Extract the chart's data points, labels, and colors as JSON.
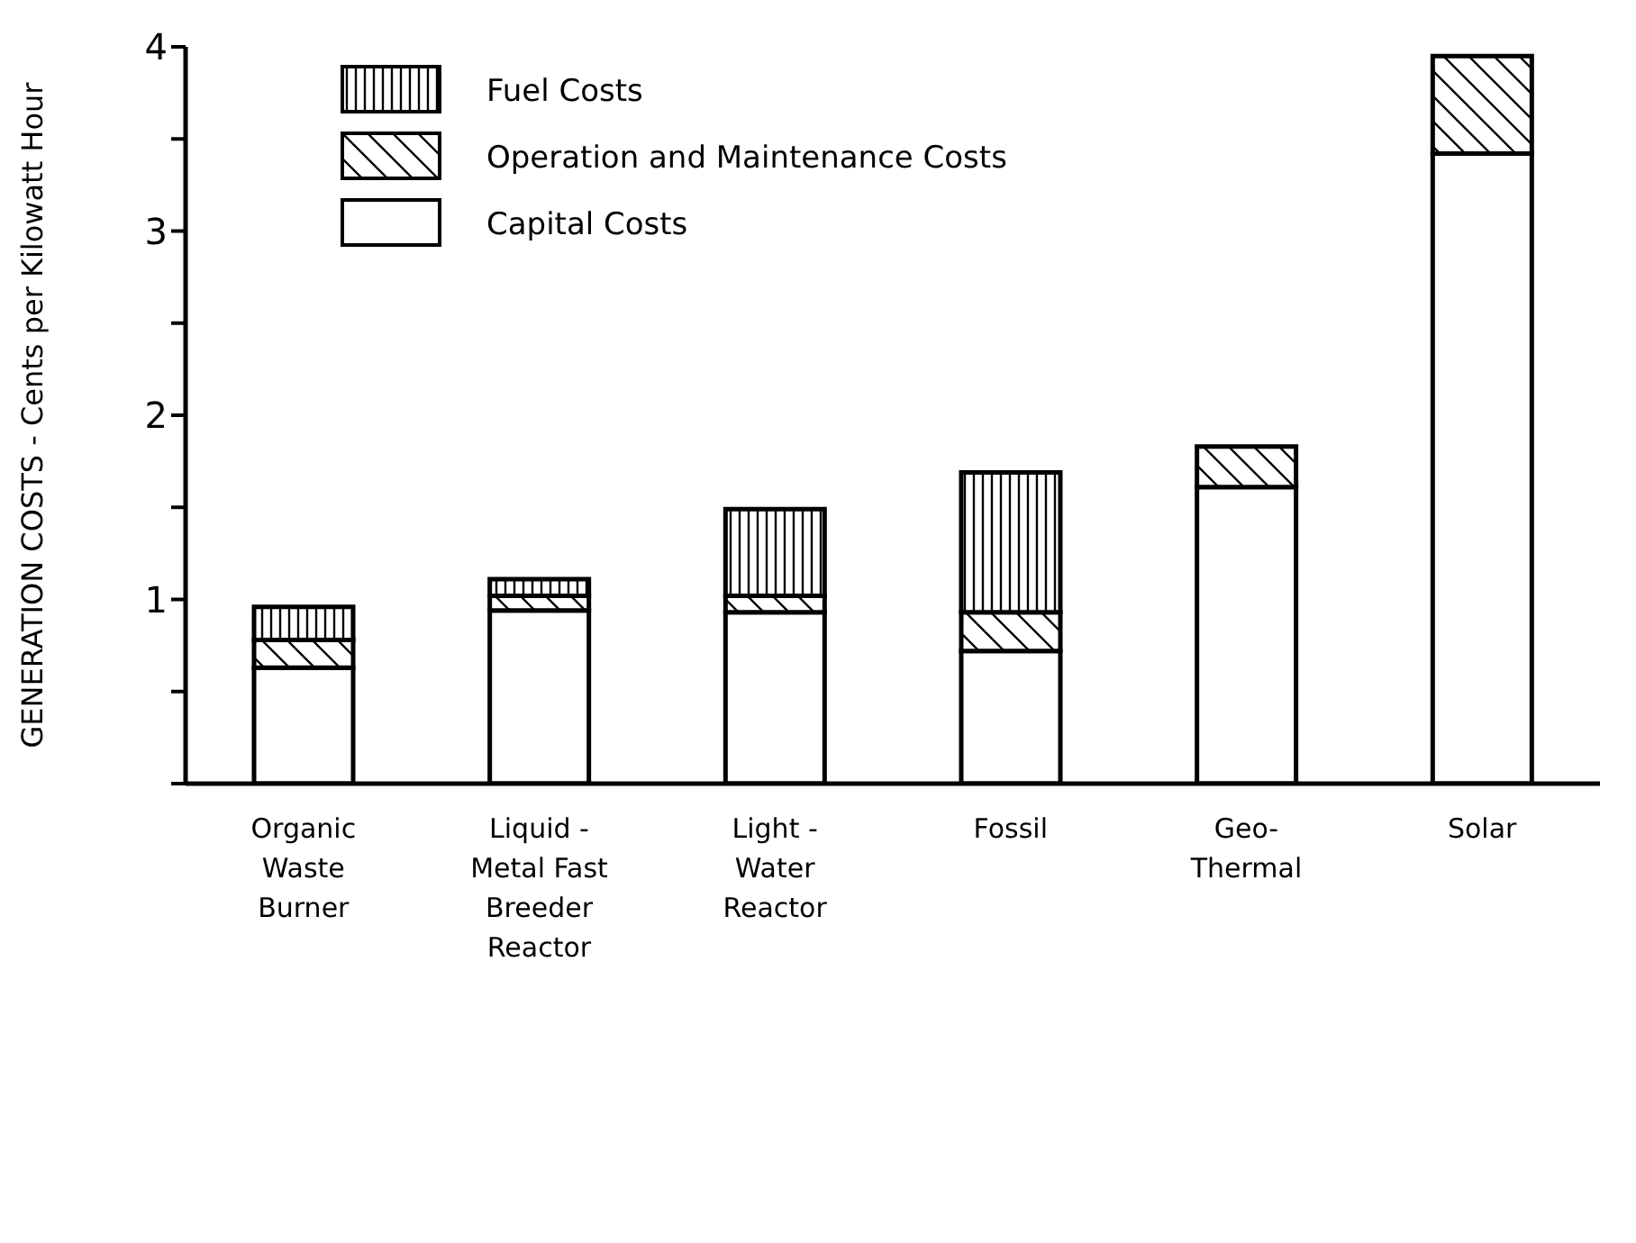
{
  "chart_data": {
    "type": "bar",
    "stacked": true,
    "ylabel": "GENERATION COSTS - Cents per Kilowatt Hour",
    "categories": [
      "Organic Waste Burner",
      "Liquid - Metal Fast Breeder Reactor",
      "Light - Water Reactor",
      "Fossil",
      "Geo-Thermal",
      "Solar"
    ],
    "series": [
      {
        "name": "Capital Costs",
        "color": "#000000",
        "values": [
          0.63,
          0.94,
          0.93,
          0.72,
          1.61,
          3.42
        ]
      },
      {
        "name": "Operation and Maintenance Costs",
        "color": "#000000",
        "values": [
          0.15,
          0.08,
          0.09,
          0.21,
          0.22,
          0.53
        ]
      },
      {
        "name": "Fuel Costs",
        "color": "#000000",
        "values": [
          0.18,
          0.09,
          0.47,
          0.76,
          0,
          0
        ]
      }
    ],
    "ylim": [
      0,
      4
    ],
    "yticks": [
      {
        "value": 0,
        "label": null
      },
      {
        "value": 0.5,
        "label": null
      },
      1,
      {
        "value": 1.5,
        "label": null
      },
      2,
      {
        "value": 2.5,
        "label": null
      },
      3,
      {
        "value": 3.5,
        "label": null
      },
      4
    ],
    "legend": "top left"
  }
}
